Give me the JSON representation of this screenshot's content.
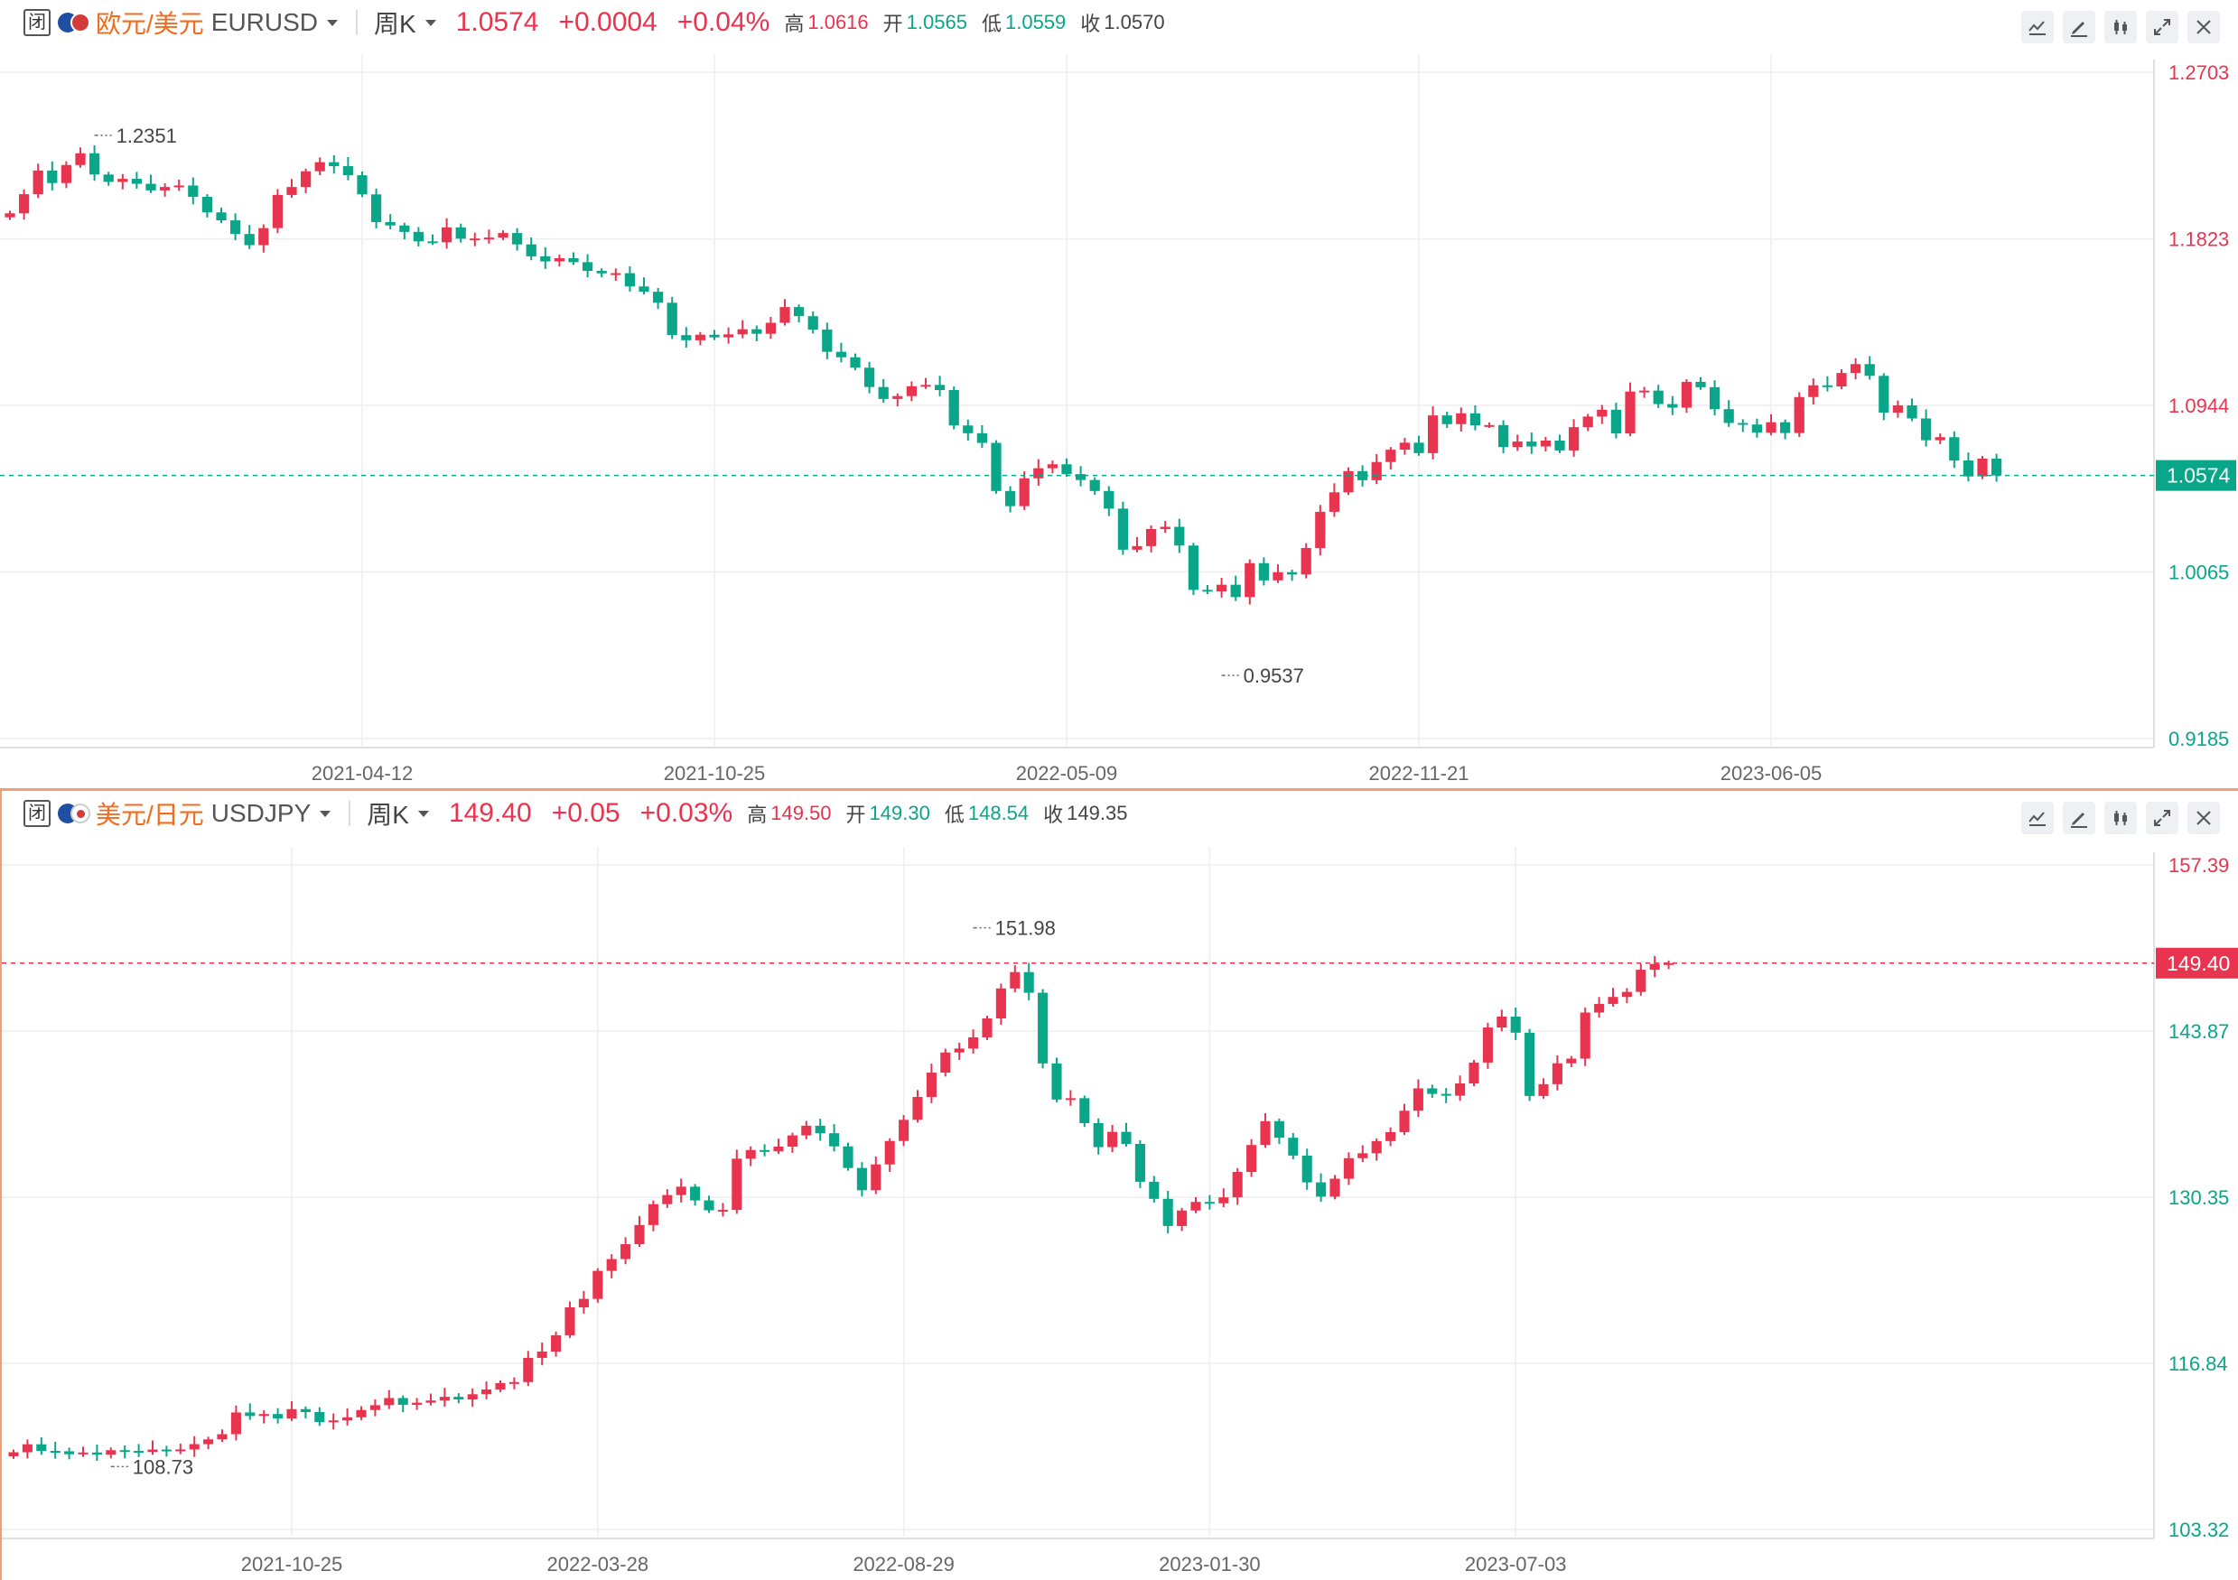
{
  "panels": [
    {
      "status_badge": "闭",
      "flag_colors": [
        "#1f4ea3",
        "#d33a3a"
      ],
      "name": "欧元/美元",
      "code": "EURUSD",
      "period": "周K",
      "price": "1.0574",
      "change": "+0.0004",
      "change_pct": "+0.04%",
      "high_label": "高",
      "high": "1.0616",
      "open_label": "开",
      "open": "1.0565",
      "low_label": "低",
      "low": "1.0559",
      "close_label": "收",
      "close": "1.0570",
      "tool_icons": [
        "line-chart-icon",
        "draw-pen-icon",
        "candle-style-icon",
        "expand-icon",
        "close-icon"
      ]
    },
    {
      "status_badge": "闭",
      "flag_colors": [
        "#d33a3a",
        "#ffffff"
      ],
      "name": "美元/日元",
      "code": "USDJPY",
      "period": "周K",
      "price": "149.40",
      "change": "+0.05",
      "change_pct": "+0.03%",
      "high_label": "高",
      "high": "149.50",
      "open_label": "开",
      "open": "149.30",
      "low_label": "低",
      "low": "148.54",
      "close_label": "收",
      "close": "149.35",
      "tool_icons": [
        "line-chart-icon",
        "draw-pen-icon",
        "candle-style-icon",
        "expand-icon",
        "close-icon"
      ]
    }
  ],
  "colors": {
    "up": "#e8344e",
    "down": "#0aa68a",
    "grid": "#eeeeee",
    "accent": "#f26b1d"
  },
  "chart_data": [
    {
      "type": "candlestick",
      "symbol": "EURUSD",
      "period": "weekly",
      "ylim": [
        0.9185,
        1.2703
      ],
      "y_ticks": [
        "1.2703",
        "1.1823",
        "1.0944",
        "1.0065",
        "0.9185"
      ],
      "x_ticks": [
        "2021-04-12",
        "2021-10-25",
        "2022-05-09",
        "2022-11-21",
        "2023-06-05"
      ],
      "x_tick_index": [
        25,
        50,
        75,
        100,
        125
      ],
      "last_price": "1.0574",
      "last_price_direction": "down",
      "annotations": [
        {
          "index": 6,
          "value": 1.2351,
          "label": "1.2351",
          "side": "above"
        },
        {
          "index": 86,
          "value": 0.9537,
          "label": "0.9537",
          "side": "below"
        }
      ],
      "closes": [
        1.1958,
        1.2059,
        1.2184,
        1.2118,
        1.2213,
        1.2275,
        1.2163,
        1.2124,
        1.214,
        1.2114,
        1.2079,
        1.2097,
        1.2105,
        1.2045,
        1.1963,
        1.1921,
        1.1849,
        1.179,
        1.188,
        1.2055,
        1.2097,
        1.218,
        1.2228,
        1.2207,
        1.2159,
        1.2058,
        1.1912,
        1.1894,
        1.186,
        1.181,
        1.1805,
        1.1884,
        1.1824,
        1.1825,
        1.183,
        1.1854,
        1.1794,
        1.1731,
        1.1704,
        1.1721,
        1.17,
        1.1654,
        1.1641,
        1.1642,
        1.1572,
        1.1544,
        1.1486,
        1.1315,
        1.1288,
        1.1317,
        1.1303,
        1.1319,
        1.1346,
        1.1322,
        1.138,
        1.1463,
        1.1415,
        1.1344,
        1.1227,
        1.1198,
        1.1143,
        1.1041,
        1.0978,
        1.0993,
        1.1045,
        1.1052,
        1.1025,
        1.0838,
        1.0797,
        1.0746,
        1.0492,
        1.0412,
        1.0559,
        1.0612,
        1.0633,
        1.0581,
        1.055,
        1.0492,
        1.0399,
        1.0182,
        1.0201,
        1.0291,
        1.0303,
        1.0204,
        0.997,
        0.9962,
        0.9997,
        0.9932,
        1.0111,
        1.002,
        1.0063,
        1.0051,
        1.0191,
        1.0382,
        1.0485,
        1.0597,
        1.0549,
        1.0645,
        1.071,
        1.0747,
        1.0692,
        1.0891,
        1.0845,
        1.0902,
        1.0839,
        1.084,
        1.0724,
        1.0753,
        1.0727,
        1.0758,
        1.0706,
        1.0829,
        1.0885,
        1.0921,
        1.0796,
        1.1017,
        1.1022,
        1.0951,
        1.0932,
        1.1068,
        1.104,
        1.0924,
        1.0851,
        1.0843,
        1.08,
        1.0855,
        1.0798,
        1.0988,
        1.105,
        1.1044,
        1.1115,
        1.1162,
        1.11,
        1.0906,
        1.0944,
        1.0875,
        1.076,
        1.0776,
        1.0653,
        1.0569,
        1.0663,
        1.0574
      ],
      "volume": []
    },
    {
      "type": "candlestick",
      "symbol": "USDJPY",
      "period": "weekly",
      "ylim": [
        103.32,
        157.39
      ],
      "y_ticks": [
        "157.39",
        "143.87",
        "130.35",
        "116.84",
        "103.32"
      ],
      "x_ticks": [
        "2021-10-25",
        "2022-03-28",
        "2022-08-29",
        "2023-01-30",
        "2023-07-03"
      ],
      "x_tick_index": [
        20,
        42,
        64,
        86,
        108
      ],
      "last_price": "149.40",
      "last_price_direction": "up",
      "annotations": [
        {
          "index": 7,
          "value": 108.73,
          "label": "108.73",
          "side": "below"
        },
        {
          "index": 69,
          "value": 151.98,
          "label": "151.98",
          "side": "above"
        }
      ],
      "closes": [
        109.6,
        110.25,
        109.71,
        109.68,
        109.44,
        109.58,
        109.41,
        109.77,
        109.71,
        109.62,
        109.82,
        109.76,
        109.83,
        110.26,
        110.65,
        111.07,
        112.84,
        112.55,
        112.71,
        112.35,
        113.11,
        112.87,
        112.06,
        112.19,
        112.44,
        113.04,
        113.43,
        114.01,
        113.46,
        113.63,
        113.81,
        114.11,
        113.9,
        114.32,
        114.71,
        115.23,
        115.31,
        117.28,
        117.79,
        119.12,
        121.39,
        122.08,
        124.36,
        125.32,
        126.53,
        128.09,
        129.79,
        130.53,
        131.21,
        130.09,
        129.29,
        129.32,
        133.49,
        134.19,
        134.09,
        134.47,
        135.38,
        136.17,
        135.56,
        134.49,
        132.73,
        130.92,
        133.02,
        134.93,
        136.65,
        138.51,
        140.49,
        142.13,
        142.45,
        143.36,
        144.9,
        147.34,
        148.67,
        146.99,
        141.24,
        138.3,
        138.41,
        136.38,
        134.43,
        135.67,
        134.69,
        131.61,
        130.22,
        128.01,
        129.27,
        129.97,
        129.86,
        130.34,
        132.41,
        134.6,
        136.54,
        135.19,
        133.74,
        131.56,
        130.4,
        131.86,
        133.53,
        133.93,
        134.92,
        135.65,
        137.39,
        139.21,
        138.76,
        138.61,
        139.61,
        141.31,
        144.16,
        145.05,
        143.74,
        138.59,
        139.55,
        141.25,
        141.63,
        145.38,
        146.08,
        146.65,
        147.06,
        148.86,
        149.33,
        149.4
      ]
    }
  ]
}
